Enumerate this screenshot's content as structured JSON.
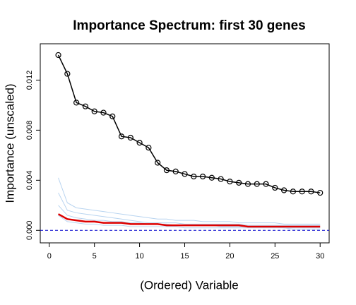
{
  "chart_data": {
    "type": "line",
    "title": "Importance Spectrum: first 30 genes",
    "xlabel": "(Ordered) Variable",
    "ylabel": "Importance (unscaled)",
    "x": [
      1,
      2,
      3,
      4,
      5,
      6,
      7,
      8,
      9,
      10,
      11,
      12,
      13,
      14,
      15,
      16,
      17,
      18,
      19,
      20,
      21,
      22,
      23,
      24,
      25,
      26,
      27,
      28,
      29,
      30
    ],
    "xlim": [
      -1,
      31
    ],
    "xticks": [
      0,
      5,
      10,
      15,
      20,
      25,
      30
    ],
    "ylim": [
      -0.001,
      0.0149
    ],
    "yticks": [
      {
        "value": 0,
        "label": "0.000"
      },
      0.004,
      0.008,
      0.012
    ],
    "reference_line": {
      "value": 0,
      "color": "#0000cc"
    },
    "series": [
      {
        "color": "#b8d4f0",
        "values": [
          0.0042,
          0.0022,
          0.0018,
          0.0017,
          0.0016,
          0.0015,
          0.0014,
          0.0013,
          0.0012,
          0.0011,
          0.001,
          0.0009,
          0.0009,
          0.0008,
          0.0008,
          0.0008,
          0.0007,
          0.0007,
          0.0007,
          0.0007,
          0.0006,
          0.0006,
          0.0006,
          0.0006,
          0.0006,
          0.0005,
          0.0005,
          0.0005,
          0.0005,
          0.0005
        ]
      },
      {
        "color": "#b8d4f0",
        "values": [
          0.003,
          0.0016,
          0.0014,
          0.0013,
          0.0012,
          0.0011,
          0.001,
          0.0009,
          0.0008,
          0.0007,
          0.0006,
          0.0006,
          0.0006,
          0.0006,
          0.0005,
          0.0005,
          0.0005,
          0.0005,
          0.0005,
          0.0005,
          0.0005,
          0.0004,
          0.0004,
          0.0004,
          0.0004,
          0.0004,
          0.0004,
          0.0004,
          0.0004,
          0.0004
        ]
      },
      {
        "color": "#b8d4f0",
        "values": [
          0.002,
          0.0012,
          0.001,
          0.0009,
          0.0008,
          0.0008,
          0.0007,
          0.0007,
          0.0006,
          0.0006,
          0.0005,
          0.0005,
          0.0005,
          0.0004,
          0.0004,
          0.0004,
          0.0004,
          0.0004,
          0.0003,
          0.0003,
          0.0003,
          0.0003,
          0.0003,
          0.0003,
          0.0003,
          0.0002,
          0.0002,
          0.0002,
          0.0002,
          0.0002
        ]
      },
      {
        "color": "#b8d4f0",
        "values": [
          0.0012,
          0.0007,
          0.0006,
          0.0005,
          0.0005,
          0.0004,
          0.0004,
          0.0004,
          0.0003,
          0.0003,
          0.0003,
          0.0003,
          0.0003,
          0.0003,
          0.0002,
          0.0002,
          0.0002,
          0.0002,
          0.0002,
          0.0002,
          0.0002,
          0.0002,
          0.0002,
          0.0002,
          0.0002,
          0.0002,
          0.0001,
          0.0001,
          0.0001,
          0.0001
        ]
      },
      {
        "color": "#dd0000",
        "values": [
          0.0013,
          0.0009,
          0.0008,
          0.0007,
          0.0007,
          0.0006,
          0.0006,
          0.0006,
          0.0005,
          0.0005,
          0.0005,
          0.0005,
          0.0004,
          0.0004,
          0.0004,
          0.0004,
          0.0004,
          0.0004,
          0.0004,
          0.0004,
          0.0004,
          0.0003,
          0.0003,
          0.0003,
          0.0003,
          0.0003,
          0.0003,
          0.0003,
          0.0003,
          0.0003
        ]
      },
      {
        "color": "#000000",
        "marker": "circle",
        "values": [
          0.014,
          0.0125,
          0.0102,
          0.0099,
          0.0095,
          0.0094,
          0.0091,
          0.0075,
          0.0074,
          0.007,
          0.0066,
          0.0054,
          0.0048,
          0.0047,
          0.0045,
          0.0043,
          0.0043,
          0.0042,
          0.0041,
          0.0039,
          0.0038,
          0.0037,
          0.0037,
          0.0037,
          0.0034,
          0.0032,
          0.0031,
          0.0031,
          0.0031,
          0.003
        ]
      }
    ]
  }
}
